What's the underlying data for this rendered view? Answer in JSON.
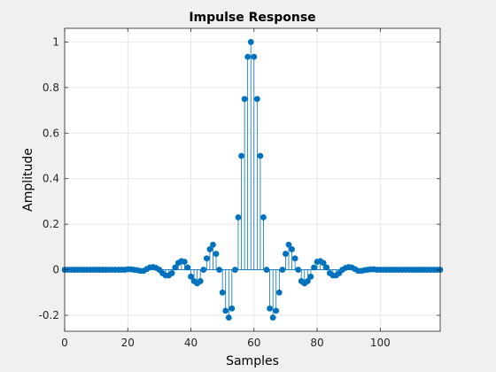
{
  "chart_data": {
    "type": "stem",
    "title": "Impulse Response",
    "xlabel": "Samples",
    "ylabel": "Amplitude",
    "xlim": [
      0,
      119
    ],
    "ylim": [
      -0.27,
      1.06
    ],
    "xticks": [
      0,
      20,
      40,
      60,
      80,
      100
    ],
    "yticks": [
      -0.2,
      0,
      0.2,
      0.4,
      0.6,
      0.8,
      1
    ],
    "ytick_labels": [
      "-0.2",
      "0",
      "0.2",
      "0.4",
      "0.6",
      "0.8",
      "1"
    ],
    "grid": true,
    "color": "#0072bd",
    "series": [
      {
        "x": [
          0,
          1,
          2,
          3,
          4,
          5,
          6,
          7,
          8,
          9,
          10,
          11,
          12,
          13,
          14,
          15,
          16,
          17,
          18,
          19,
          20,
          21,
          22,
          23,
          24,
          25,
          26,
          27,
          28,
          29,
          30,
          31,
          32,
          33,
          34,
          35,
          36,
          37,
          38,
          39,
          40,
          41,
          42,
          43,
          44,
          45,
          46,
          47,
          48,
          49,
          50,
          51,
          52,
          53,
          54,
          55,
          56,
          57,
          58,
          59,
          60,
          61,
          62,
          63,
          64,
          65,
          66,
          67,
          68,
          69,
          70,
          71,
          72,
          73,
          74,
          75,
          76,
          77,
          78,
          79,
          80,
          81,
          82,
          83,
          84,
          85,
          86,
          87,
          88,
          89,
          90,
          91,
          92,
          93,
          94,
          95,
          96,
          97,
          98,
          99,
          100,
          101,
          102,
          103,
          104,
          105,
          106,
          107,
          108,
          109,
          110,
          111,
          112,
          113,
          114,
          115,
          116,
          117,
          118,
          119
        ],
        "values": [
          0,
          0,
          0,
          0,
          0,
          0,
          0,
          0,
          0,
          0,
          0,
          0,
          0,
          0,
          0,
          0,
          0,
          0,
          0,
          0,
          0.002,
          0.002,
          0,
          -0.002,
          -0.005,
          -0.005,
          0.003,
          0.01,
          0.012,
          0.008,
          0,
          -0.015,
          -0.025,
          -0.025,
          -0.015,
          0.01,
          0.03,
          0.038,
          0.035,
          0.01,
          -0.03,
          -0.05,
          -0.06,
          -0.05,
          0,
          0.05,
          0.09,
          0.11,
          0.07,
          0,
          -0.1,
          -0.18,
          -0.21,
          -0.17,
          0,
          0.23,
          0.5,
          0.75,
          0.935,
          1,
          0.935,
          0.75,
          0.5,
          0.23,
          0,
          -0.17,
          -0.21,
          -0.18,
          -0.1,
          0,
          0.07,
          0.11,
          0.09,
          0.05,
          0,
          -0.05,
          -0.06,
          -0.05,
          -0.03,
          0.01,
          0.035,
          0.038,
          0.03,
          0.01,
          -0.015,
          -0.025,
          -0.025,
          -0.015,
          0,
          0.008,
          0.012,
          0.01,
          0.003,
          -0.005,
          -0.005,
          -0.002,
          0,
          0.002,
          0.002,
          0,
          0,
          0,
          0,
          0,
          0,
          0,
          0,
          0,
          0,
          0,
          0,
          0,
          0,
          0,
          0,
          0,
          0,
          0,
          0,
          0
        ]
      }
    ]
  }
}
